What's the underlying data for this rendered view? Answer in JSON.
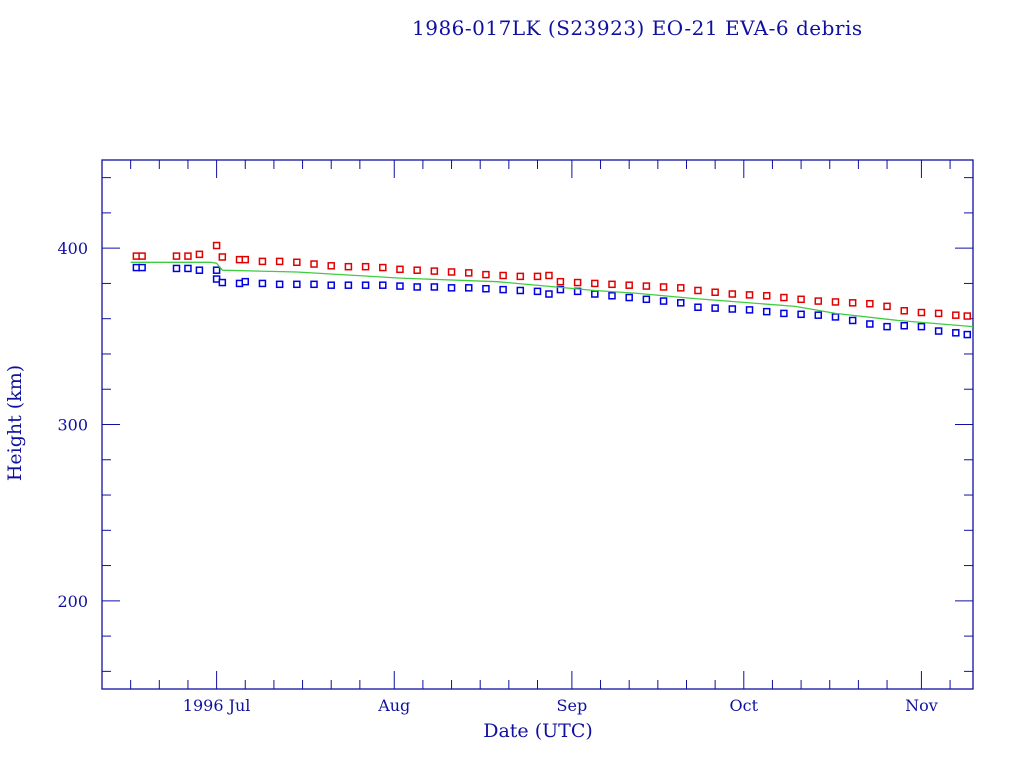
{
  "chart_data": {
    "type": "scatter",
    "title": "1986-017LK (S23923) EO-21 EVA-6 debris",
    "xlabel": "Date (UTC)",
    "ylabel": "Height (km)",
    "xlim": [
      "1996-06-11",
      "1996-11-10"
    ],
    "ylim": [
      150,
      450
    ],
    "x_ticks": [
      {
        "date": "1996-07-01",
        "label": "1996 Jul"
      },
      {
        "date": "1996-08-01",
        "label": "Aug"
      },
      {
        "date": "1996-09-01",
        "label": "Sep"
      },
      {
        "date": "1996-10-01",
        "label": "Oct"
      },
      {
        "date": "1996-11-01",
        "label": "Nov"
      }
    ],
    "y_ticks": [
      200,
      300,
      400
    ],
    "grid": false,
    "colors": {
      "axis": "#1010a0",
      "apogee": "#e00000",
      "perigee": "#0000e0",
      "mean": "#40cc40"
    },
    "series": [
      {
        "marker": "square",
        "color": "#e00000",
        "points": [
          [
            "1996-06-17",
            395.5
          ],
          [
            "1996-06-18",
            395.5
          ],
          [
            "1996-06-24",
            395.5
          ],
          [
            "1996-06-26",
            395.5
          ],
          [
            "1996-06-28",
            396.5
          ],
          [
            "1996-07-01",
            401.5
          ],
          [
            "1996-07-02",
            395
          ],
          [
            "1996-07-05",
            393.5
          ],
          [
            "1996-07-06",
            393.5
          ],
          [
            "1996-07-09",
            392.5
          ],
          [
            "1996-07-12",
            392.5
          ],
          [
            "1996-07-15",
            392
          ],
          [
            "1996-07-18",
            391
          ],
          [
            "1996-07-21",
            390
          ],
          [
            "1996-07-24",
            389.5
          ],
          [
            "1996-07-27",
            389.5
          ],
          [
            "1996-07-30",
            389
          ],
          [
            "1996-08-02",
            388
          ],
          [
            "1996-08-05",
            387.5
          ],
          [
            "1996-08-08",
            387
          ],
          [
            "1996-08-11",
            386.5
          ],
          [
            "1996-08-14",
            386
          ],
          [
            "1996-08-17",
            385
          ],
          [
            "1996-08-20",
            384.5
          ],
          [
            "1996-08-23",
            384
          ],
          [
            "1996-08-26",
            384
          ],
          [
            "1996-08-28",
            384.5
          ],
          [
            "1996-08-30",
            381
          ],
          [
            "1996-09-02",
            380.5
          ],
          [
            "1996-09-05",
            380
          ],
          [
            "1996-09-08",
            379.5
          ],
          [
            "1996-09-11",
            379
          ],
          [
            "1996-09-14",
            378.5
          ],
          [
            "1996-09-17",
            378
          ],
          [
            "1996-09-20",
            377.5
          ],
          [
            "1996-09-23",
            376
          ],
          [
            "1996-09-26",
            375
          ],
          [
            "1996-09-29",
            374
          ],
          [
            "1996-10-02",
            373.5
          ],
          [
            "1996-10-05",
            373
          ],
          [
            "1996-10-08",
            372
          ],
          [
            "1996-10-11",
            371
          ],
          [
            "1996-10-14",
            370
          ],
          [
            "1996-10-17",
            369.5
          ],
          [
            "1996-10-20",
            369
          ],
          [
            "1996-10-23",
            368.5
          ],
          [
            "1996-10-26",
            367
          ],
          [
            "1996-10-29",
            364.5
          ],
          [
            "1996-11-01",
            363.5
          ],
          [
            "1996-11-04",
            363
          ],
          [
            "1996-11-07",
            362
          ],
          [
            "1996-11-09",
            361.5
          ]
        ]
      },
      {
        "marker": "square",
        "color": "#0000e0",
        "points": [
          [
            "1996-06-17",
            389
          ],
          [
            "1996-06-18",
            389
          ],
          [
            "1996-06-24",
            388.5
          ],
          [
            "1996-06-26",
            388.5
          ],
          [
            "1996-06-28",
            387.5
          ],
          [
            "1996-07-01",
            387.5
          ],
          [
            "1996-07-01",
            382.5
          ],
          [
            "1996-07-02",
            380.5
          ],
          [
            "1996-07-05",
            380
          ],
          [
            "1996-07-06",
            381
          ],
          [
            "1996-07-09",
            380
          ],
          [
            "1996-07-12",
            379.5
          ],
          [
            "1996-07-15",
            379.5
          ],
          [
            "1996-07-18",
            379.5
          ],
          [
            "1996-07-21",
            379
          ],
          [
            "1996-07-24",
            379
          ],
          [
            "1996-07-27",
            379
          ],
          [
            "1996-07-30",
            379
          ],
          [
            "1996-08-02",
            378.5
          ],
          [
            "1996-08-05",
            378
          ],
          [
            "1996-08-08",
            378
          ],
          [
            "1996-08-11",
            377.5
          ],
          [
            "1996-08-14",
            377.5
          ],
          [
            "1996-08-17",
            377
          ],
          [
            "1996-08-20",
            376.5
          ],
          [
            "1996-08-23",
            376
          ],
          [
            "1996-08-26",
            375.5
          ],
          [
            "1996-08-28",
            374
          ],
          [
            "1996-08-30",
            376.5
          ],
          [
            "1996-09-02",
            375.5
          ],
          [
            "1996-09-05",
            374
          ],
          [
            "1996-09-08",
            373
          ],
          [
            "1996-09-11",
            372
          ],
          [
            "1996-09-14",
            371
          ],
          [
            "1996-09-17",
            370
          ],
          [
            "1996-09-20",
            369
          ],
          [
            "1996-09-23",
            366.5
          ],
          [
            "1996-09-26",
            366
          ],
          [
            "1996-09-29",
            365.5
          ],
          [
            "1996-10-02",
            365
          ],
          [
            "1996-10-05",
            364
          ],
          [
            "1996-10-08",
            363
          ],
          [
            "1996-10-11",
            362.5
          ],
          [
            "1996-10-14",
            362
          ],
          [
            "1996-10-17",
            361
          ],
          [
            "1996-10-20",
            359
          ],
          [
            "1996-10-23",
            357
          ],
          [
            "1996-10-26",
            355.5
          ],
          [
            "1996-10-29",
            356
          ],
          [
            "1996-11-01",
            355.5
          ],
          [
            "1996-11-04",
            353
          ],
          [
            "1996-11-07",
            352
          ],
          [
            "1996-11-09",
            351
          ]
        ]
      },
      {
        "marker": "line",
        "color": "#40cc40",
        "points": [
          [
            "1996-06-16",
            392
          ],
          [
            "1996-06-30",
            392
          ],
          [
            "1996-07-01",
            391.5
          ],
          [
            "1996-07-02",
            387.5
          ],
          [
            "1996-07-15",
            386.5
          ],
          [
            "1996-08-02",
            383
          ],
          [
            "1996-08-19",
            381
          ],
          [
            "1996-09-05",
            376
          ],
          [
            "1996-09-12",
            374.5
          ],
          [
            "1996-09-22",
            371.5
          ],
          [
            "1996-10-10",
            367
          ],
          [
            "1996-10-17",
            363
          ],
          [
            "1996-10-28",
            359
          ],
          [
            "1996-11-10",
            355.5
          ]
        ]
      }
    ]
  }
}
